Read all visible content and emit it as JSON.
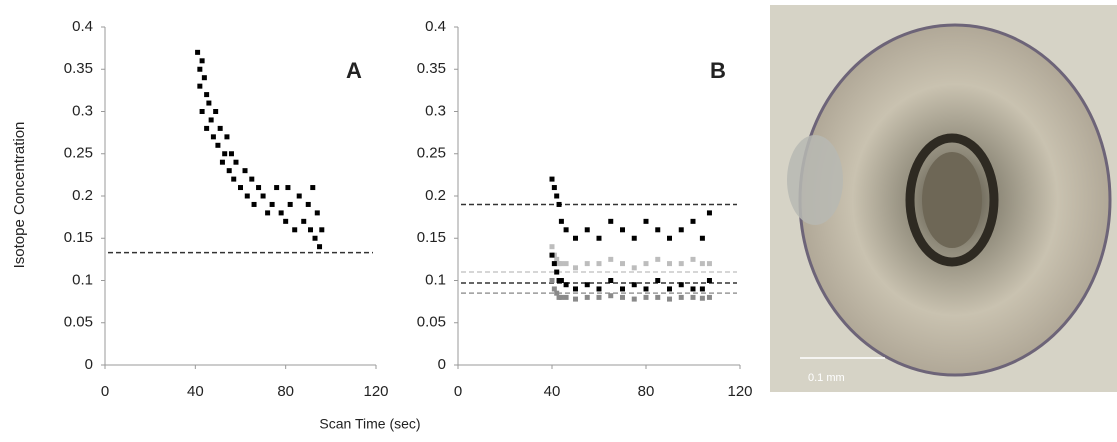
{
  "chart_data": [
    {
      "type": "scatter",
      "label": "A",
      "y_label": "Isotope Concentration",
      "x_label": "Scan Time (sec)",
      "xlim": [
        0,
        120
      ],
      "xticks": [
        0,
        40,
        80,
        120
      ],
      "ylim": [
        0,
        0.4
      ],
      "yticks": [
        0,
        0.05,
        0.1,
        0.15,
        0.2,
        0.25,
        0.3,
        0.35,
        0.4
      ],
      "series": [
        {
          "color": "#000000",
          "x": [
            41,
            42,
            42,
            43,
            43,
            44,
            45,
            45,
            46,
            47,
            48,
            49,
            50,
            51,
            52,
            53,
            54,
            55,
            56,
            57,
            58,
            60,
            62,
            63,
            65,
            66,
            68,
            70,
            72,
            74,
            76,
            78,
            80,
            81,
            82,
            84,
            86,
            88,
            90,
            91,
            92,
            93,
            94,
            95,
            96
          ],
          "values": [
            0.37,
            0.35,
            0.33,
            0.36,
            0.3,
            0.34,
            0.32,
            0.28,
            0.31,
            0.29,
            0.27,
            0.3,
            0.26,
            0.28,
            0.24,
            0.25,
            0.27,
            0.23,
            0.25,
            0.22,
            0.24,
            0.21,
            0.23,
            0.2,
            0.22,
            0.19,
            0.21,
            0.2,
            0.18,
            0.19,
            0.21,
            0.18,
            0.17,
            0.21,
            0.19,
            0.16,
            0.2,
            0.17,
            0.19,
            0.16,
            0.21,
            0.15,
            0.18,
            0.14,
            0.16
          ]
        }
      ],
      "hlines": [
        {
          "value": 0.133,
          "color": "#333333"
        }
      ]
    },
    {
      "type": "scatter",
      "label": "B",
      "xlim": [
        0,
        120
      ],
      "xticks": [
        0,
        40,
        80,
        120
      ],
      "ylim": [
        0,
        0.4
      ],
      "yticks": [
        0,
        0.05,
        0.1,
        0.15,
        0.2,
        0.25,
        0.3,
        0.35,
        0.4
      ],
      "series": [
        {
          "color": "#000000",
          "x": [
            40,
            41,
            42,
            43,
            44,
            46,
            50,
            55,
            60,
            65,
            70,
            75,
            80,
            85,
            90,
            95,
            100,
            104,
            107
          ],
          "values": [
            0.22,
            0.21,
            0.2,
            0.19,
            0.17,
            0.16,
            0.15,
            0.16,
            0.15,
            0.17,
            0.16,
            0.15,
            0.17,
            0.16,
            0.15,
            0.16,
            0.17,
            0.15,
            0.18
          ]
        },
        {
          "color": "#bdbdbd",
          "x": [
            40,
            41,
            42,
            43,
            44,
            46,
            50,
            55,
            60,
            65,
            70,
            75,
            80,
            85,
            90,
            95,
            100,
            104,
            107
          ],
          "values": [
            0.14,
            0.13,
            0.125,
            0.12,
            0.12,
            0.12,
            0.115,
            0.12,
            0.12,
            0.125,
            0.12,
            0.115,
            0.12,
            0.125,
            0.12,
            0.12,
            0.125,
            0.12,
            0.12
          ]
        },
        {
          "color": "#000000",
          "x": [
            40,
            41,
            42,
            43,
            44,
            46,
            50,
            55,
            60,
            65,
            70,
            75,
            80,
            85,
            90,
            95,
            100,
            104,
            107
          ],
          "values": [
            0.13,
            0.12,
            0.11,
            0.1,
            0.1,
            0.095,
            0.09,
            0.095,
            0.09,
            0.1,
            0.09,
            0.095,
            0.09,
            0.1,
            0.09,
            0.095,
            0.09,
            0.09,
            0.1
          ]
        },
        {
          "color": "#8a8a8a",
          "x": [
            40,
            41,
            42,
            43,
            44,
            46,
            50,
            55,
            60,
            65,
            70,
            75,
            80,
            85,
            90,
            95,
            100,
            104,
            107
          ],
          "values": [
            0.1,
            0.09,
            0.085,
            0.08,
            0.08,
            0.08,
            0.078,
            0.08,
            0.08,
            0.082,
            0.08,
            0.078,
            0.08,
            0.08,
            0.078,
            0.08,
            0.08,
            0.079,
            0.08
          ]
        }
      ],
      "hlines": [
        {
          "value": 0.19,
          "color": "#333333"
        },
        {
          "value": 0.11,
          "color": "#c8c8c8"
        },
        {
          "value": 0.097,
          "color": "#333333"
        },
        {
          "value": 0.085,
          "color": "#999999"
        }
      ]
    }
  ],
  "image": {
    "scale_label": "0.1 mm"
  }
}
